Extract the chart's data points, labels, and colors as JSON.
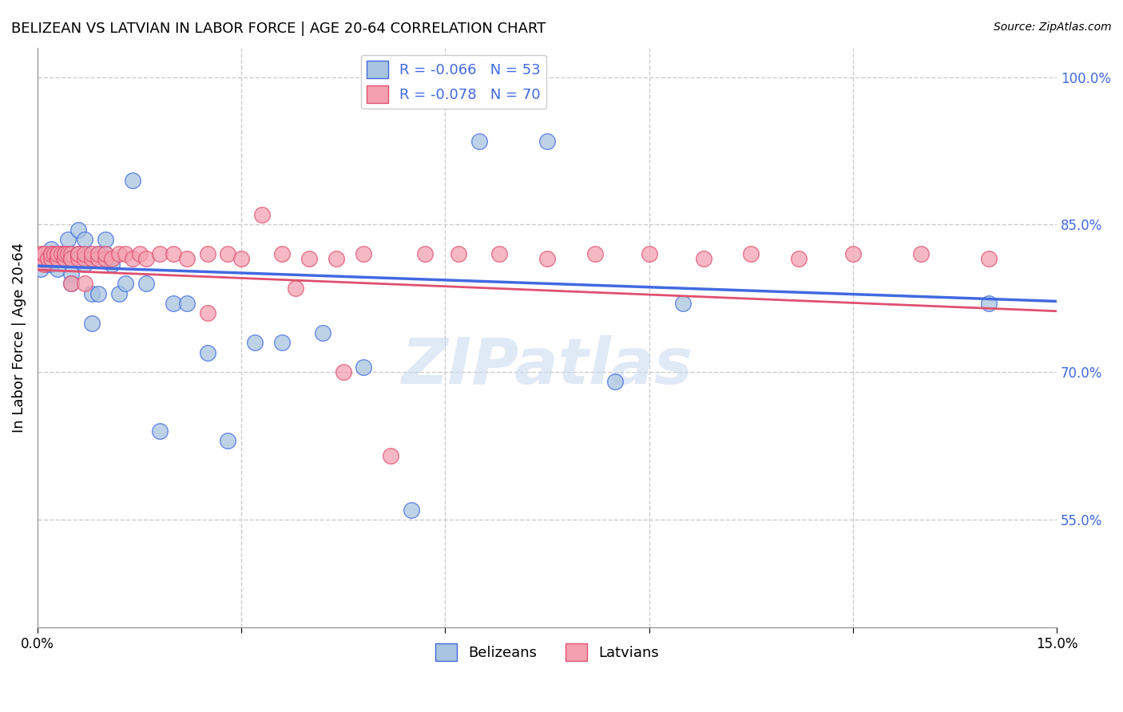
{
  "title": "BELIZEAN VS LATVIAN IN LABOR FORCE | AGE 20-64 CORRELATION CHART",
  "source": "Source: ZipAtlas.com",
  "ylabel": "In Labor Force | Age 20-64",
  "xlim": [
    0.0,
    0.15
  ],
  "ylim": [
    0.44,
    1.03
  ],
  "xticks": [
    0.0,
    0.03,
    0.06,
    0.09,
    0.12,
    0.15
  ],
  "xtick_labels": [
    "0.0%",
    "",
    "",
    "",
    "",
    "15.0%"
  ],
  "ytick_labels_right": [
    "100.0%",
    "85.0%",
    "70.0%",
    "55.0%"
  ],
  "ytick_positions_right": [
    1.0,
    0.85,
    0.7,
    0.55
  ],
  "grid_color": "#cccccc",
  "watermark": "ZIPatlas",
  "belizean_color": "#a8c4e0",
  "latvian_color": "#f4a0b0",
  "trend_belizean_color": "#4169e1",
  "trend_latvian_color": "#e05070",
  "legend_blue_label": "R = -0.066   N = 53",
  "legend_pink_label": "R = -0.078   N = 70",
  "legend_belizean": "Belizeans",
  "legend_latvian": "Latvians",
  "belizean_x": [
    0.0005,
    0.001,
    0.001,
    0.0015,
    0.002,
    0.002,
    0.002,
    0.0025,
    0.003,
    0.003,
    0.003,
    0.003,
    0.0035,
    0.004,
    0.004,
    0.004,
    0.0045,
    0.005,
    0.005,
    0.005,
    0.005,
    0.006,
    0.006,
    0.006,
    0.007,
    0.007,
    0.007,
    0.008,
    0.008,
    0.009,
    0.009,
    0.01,
    0.01,
    0.011,
    0.012,
    0.013,
    0.014,
    0.016,
    0.018,
    0.02,
    0.022,
    0.025,
    0.028,
    0.032,
    0.036,
    0.042,
    0.048,
    0.055,
    0.065,
    0.075,
    0.085,
    0.095,
    0.14
  ],
  "belizean_y": [
    0.805,
    0.815,
    0.82,
    0.81,
    0.82,
    0.825,
    0.81,
    0.82,
    0.815,
    0.82,
    0.82,
    0.805,
    0.82,
    0.815,
    0.82,
    0.82,
    0.835,
    0.82,
    0.815,
    0.8,
    0.79,
    0.82,
    0.815,
    0.845,
    0.82,
    0.835,
    0.81,
    0.78,
    0.75,
    0.82,
    0.78,
    0.82,
    0.835,
    0.81,
    0.78,
    0.79,
    0.895,
    0.79,
    0.64,
    0.77,
    0.77,
    0.72,
    0.63,
    0.73,
    0.73,
    0.74,
    0.705,
    0.56,
    0.935,
    0.935,
    0.69,
    0.77,
    0.77
  ],
  "latvian_x": [
    0.0005,
    0.001,
    0.001,
    0.001,
    0.001,
    0.0015,
    0.002,
    0.002,
    0.002,
    0.0025,
    0.003,
    0.003,
    0.003,
    0.003,
    0.003,
    0.0035,
    0.004,
    0.004,
    0.004,
    0.004,
    0.0045,
    0.005,
    0.005,
    0.005,
    0.005,
    0.006,
    0.006,
    0.006,
    0.007,
    0.007,
    0.007,
    0.008,
    0.008,
    0.009,
    0.009,
    0.01,
    0.01,
    0.011,
    0.012,
    0.013,
    0.014,
    0.015,
    0.016,
    0.018,
    0.02,
    0.022,
    0.025,
    0.028,
    0.03,
    0.033,
    0.036,
    0.04,
    0.044,
    0.048,
    0.052,
    0.057,
    0.062,
    0.068,
    0.075,
    0.082,
    0.09,
    0.098,
    0.105,
    0.112,
    0.12,
    0.13,
    0.14,
    0.025,
    0.038,
    0.045
  ],
  "latvian_y": [
    0.82,
    0.815,
    0.82,
    0.81,
    0.82,
    0.815,
    0.82,
    0.815,
    0.82,
    0.82,
    0.815,
    0.82,
    0.82,
    0.815,
    0.82,
    0.82,
    0.815,
    0.82,
    0.815,
    0.82,
    0.82,
    0.815,
    0.82,
    0.815,
    0.79,
    0.82,
    0.815,
    0.82,
    0.815,
    0.82,
    0.79,
    0.815,
    0.82,
    0.815,
    0.82,
    0.815,
    0.82,
    0.815,
    0.82,
    0.82,
    0.815,
    0.82,
    0.815,
    0.82,
    0.82,
    0.815,
    0.82,
    0.82,
    0.815,
    0.86,
    0.82,
    0.815,
    0.815,
    0.82,
    0.615,
    0.82,
    0.82,
    0.82,
    0.815,
    0.82,
    0.82,
    0.815,
    0.82,
    0.815,
    0.82,
    0.82,
    0.815,
    0.76,
    0.785,
    0.7
  ],
  "trend_bel_x0": 0.0,
  "trend_bel_y0": 0.808,
  "trend_bel_x1": 0.15,
  "trend_bel_y1": 0.772,
  "trend_lat_x0": 0.0,
  "trend_lat_y0": 0.804,
  "trend_lat_x1": 0.15,
  "trend_lat_y1": 0.762
}
